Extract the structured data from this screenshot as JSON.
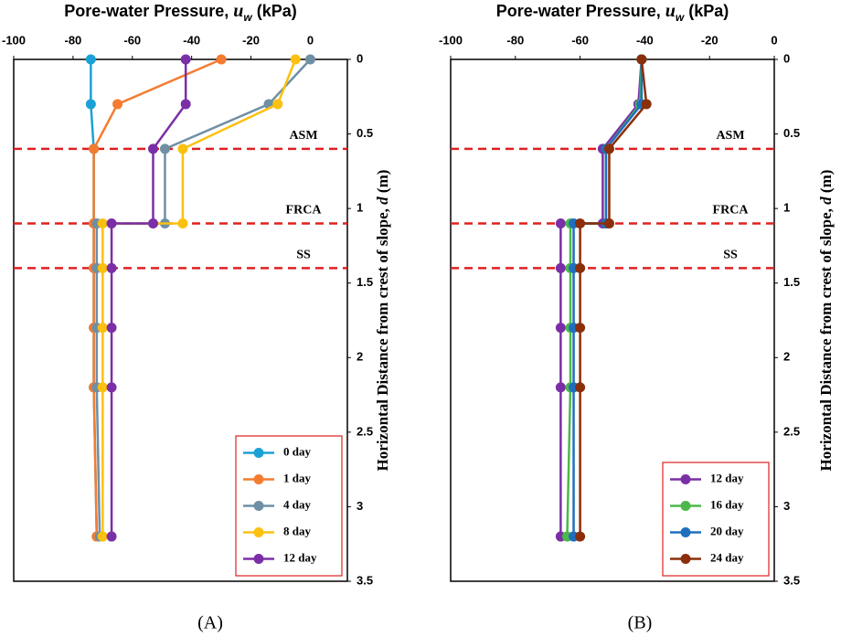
{
  "chart_data": [
    {
      "type": "line",
      "caption": "(A)",
      "x_label": [
        "Pore-water Pressure, ",
        "u",
        "w",
        " (kPa)"
      ],
      "y_label": [
        "Horizontal Distance from crest of slope, ",
        "d",
        " (m)"
      ],
      "xlim": [
        -100,
        12.5
      ],
      "xticks": [
        -100,
        -80,
        -60,
        -40,
        -20,
        0
      ],
      "ylim": [
        0,
        3.5
      ],
      "yticks": [
        0,
        0.5,
        1,
        1.5,
        2,
        2.5,
        3,
        3.5
      ],
      "y_inverted": true,
      "legend": "lower right",
      "layers": [
        {
          "label": "ASM",
          "depth": 0.6
        },
        {
          "label": "FRCA",
          "depth": 1.1
        },
        {
          "label": "SS",
          "depth": 1.4
        }
      ],
      "series": [
        {
          "name": "0 day",
          "color": "#1ba1d6",
          "x": [
            -74,
            -74,
            -73,
            -73,
            -73,
            -73,
            -73,
            -72
          ],
          "y": [
            0,
            0.3,
            0.6,
            1.1,
            1.4,
            1.8,
            2.2,
            3.2
          ]
        },
        {
          "name": "1 day",
          "color": "#f47c30",
          "x": [
            -30,
            -65,
            -73,
            -73,
            -73,
            -73,
            -73,
            -72
          ],
          "y": [
            0,
            0.3,
            0.6,
            1.1,
            1.4,
            1.8,
            2.2,
            3.2
          ]
        },
        {
          "name": "4 day",
          "color": "#6f8fa5",
          "x": [
            0,
            -14,
            -49,
            -49,
            -72,
            -72,
            -72,
            -72,
            -71
          ],
          "y": [
            0,
            0.3,
            0.6,
            1.1,
            1.1,
            1.4,
            1.8,
            2.2,
            3.2
          ]
        },
        {
          "name": "8 day",
          "color": "#fcc010",
          "x": [
            -5,
            -11,
            -43,
            -43,
            -70,
            -70,
            -70,
            -70,
            -70
          ],
          "y": [
            0,
            0.3,
            0.6,
            1.1,
            1.1,
            1.4,
            1.8,
            2.2,
            3.2
          ]
        },
        {
          "name": "12 day",
          "color": "#7b2fa6",
          "x": [
            -42,
            -42,
            -53,
            -53,
            -67,
            -67,
            -67,
            -67,
            -67
          ],
          "y": [
            0,
            0.3,
            0.6,
            1.1,
            1.1,
            1.4,
            1.8,
            2.2,
            3.2
          ]
        }
      ]
    },
    {
      "type": "line",
      "caption": "(B)",
      "x_label": [
        "Pore-water Pressure, ",
        "u",
        "w",
        " (kPa)"
      ],
      "y_label": [
        "Horizontal Distance from crest of slope, ",
        "d",
        " (m)"
      ],
      "xlim": [
        -100,
        0
      ],
      "xticks": [
        -100,
        -80,
        -60,
        -40,
        -20,
        0
      ],
      "ylim": [
        0,
        3.5
      ],
      "yticks": [
        0,
        0.5,
        1,
        1.5,
        2,
        2.5,
        3,
        3.5
      ],
      "y_inverted": true,
      "legend": "lower right",
      "layers": [
        {
          "label": "ASM",
          "depth": 0.6
        },
        {
          "label": "FRCA",
          "depth": 1.1
        },
        {
          "label": "SS",
          "depth": 1.4
        }
      ],
      "series": [
        {
          "name": "12 day",
          "color": "#7b2fa6",
          "x": [
            -41,
            -42,
            -53,
            -53,
            -66,
            -66,
            -66,
            -66,
            -66
          ],
          "y": [
            0,
            0.3,
            0.6,
            1.1,
            1.1,
            1.4,
            1.8,
            2.2,
            3.2
          ]
        },
        {
          "name": "16 day",
          "color": "#4cb84a",
          "x": [
            -41,
            -41.5,
            -52,
            -52,
            -63,
            -63,
            -63,
            -63,
            -64
          ],
          "y": [
            0,
            0.3,
            0.6,
            1.1,
            1.1,
            1.4,
            1.8,
            2.2,
            3.2
          ]
        },
        {
          "name": "20 day",
          "color": "#1f6fbf",
          "x": [
            -41,
            -41,
            -52,
            -52,
            -62,
            -62,
            -62,
            -62,
            -62
          ],
          "y": [
            0,
            0.3,
            0.6,
            1.1,
            1.1,
            1.4,
            1.8,
            2.2,
            3.2
          ]
        },
        {
          "name": "24 day",
          "color": "#8b2e0a",
          "x": [
            -41,
            -39.5,
            -51,
            -51,
            -60,
            -60,
            -60,
            -60,
            -60
          ],
          "y": [
            0,
            0.3,
            0.6,
            1.1,
            1.1,
            1.4,
            1.8,
            2.2,
            3.2
          ]
        }
      ]
    }
  ]
}
